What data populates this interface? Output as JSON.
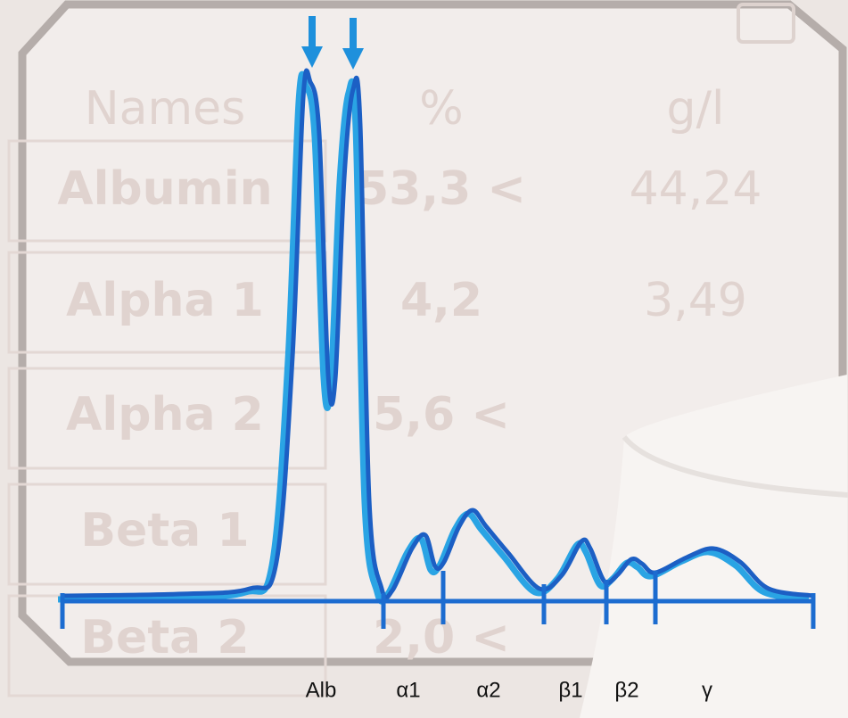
{
  "table": {
    "header": [
      "Names",
      "%",
      "g/l"
    ],
    "rows": [
      [
        "Albumin",
        "53,3 <",
        "44,24"
      ],
      [
        "Alpha 1",
        "4,2",
        "3,49"
      ],
      [
        "Alpha 2",
        "5,6 <"
      ],
      [
        "Beta 1"
      ],
      [
        "Beta 2",
        "2,0 <"
      ]
    ]
  },
  "fractions": [
    "Alb",
    "α1",
    "α2",
    "β1",
    "β2",
    "γ"
  ]
}
